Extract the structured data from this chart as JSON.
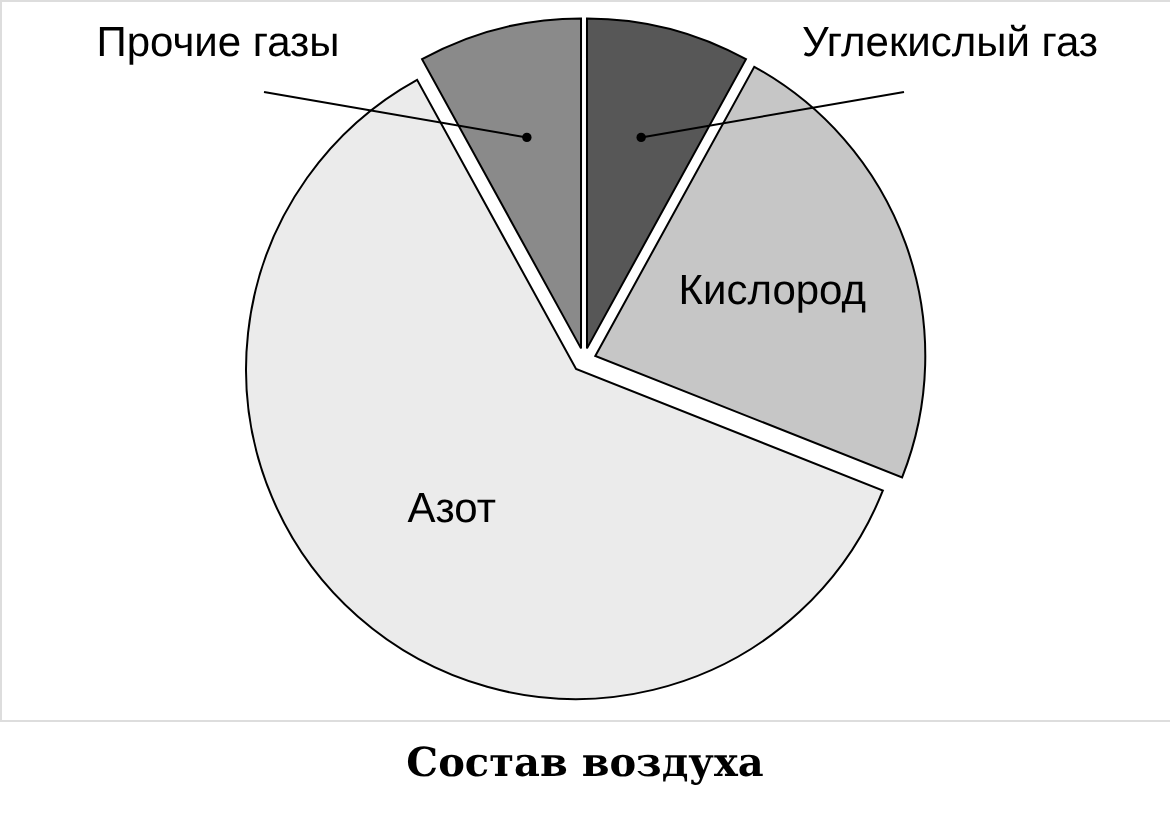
{
  "chart_data": {
    "type": "pie",
    "title": "Состав воздуха",
    "categories": [
      "Углекислый газ",
      "Кислород",
      "Азот",
      "Прочие газы"
    ],
    "values": [
      8,
      23,
      61,
      8
    ],
    "colors": [
      "#575757",
      "#c6c6c6",
      "#ebebeb",
      "#8a8a8a"
    ]
  }
}
